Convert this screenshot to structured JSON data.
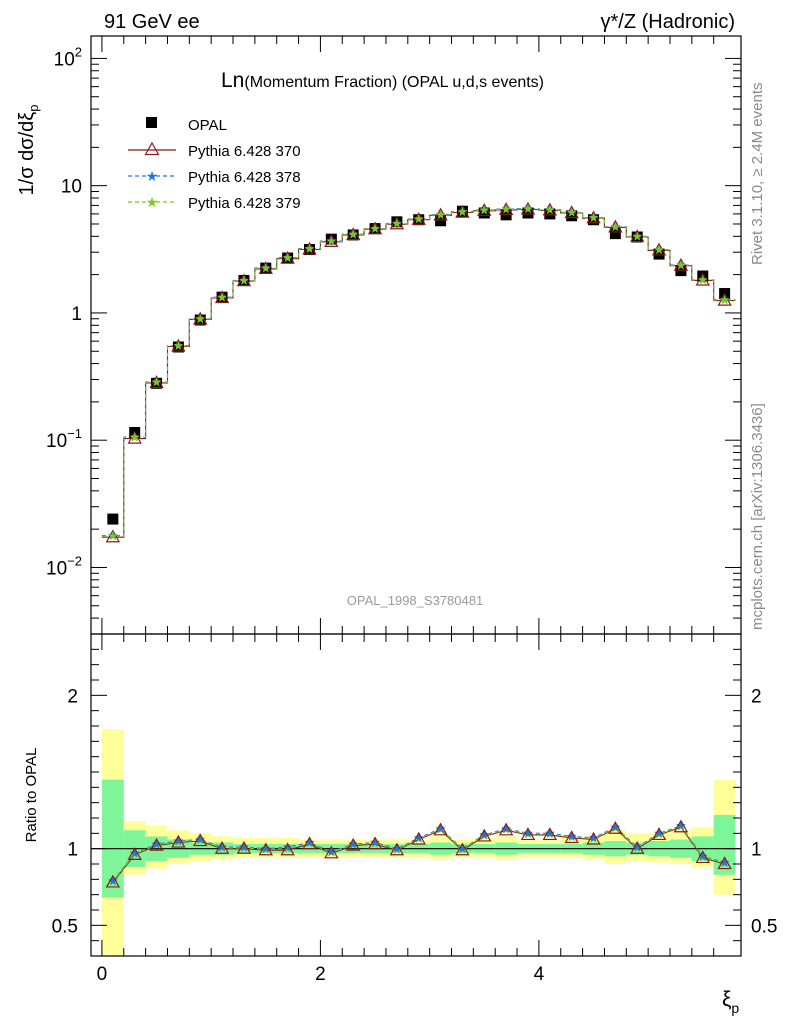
{
  "header": {
    "left": "91 GeV ee",
    "right": "γ*/Z (Hadronic)"
  },
  "title_main": "Ln",
  "title_rest": "(Momentum Fraction) (OPAL u,d,s events)",
  "analysis_id": "OPAL_1998_S3780481",
  "side_text": {
    "rivet": "Rivet 3.1.10, ≥ 2.4M events",
    "mcplots": "mcplots.cern.ch [arXiv:1306.3436]"
  },
  "y_axis_label": "1/σ dσ/dξp",
  "ratio_axis_label": "Ratio to OPAL",
  "x_axis_label": "ξp",
  "legend": [
    "OPAL",
    "Pythia 6.428 370",
    "Pythia 6.428 378",
    "Pythia 6.428 379"
  ],
  "colors": {
    "data": "#000000",
    "pythia370": "#8b1a1a",
    "pythia378": "#1f78e0",
    "pythia379": "#7bc61f",
    "band_inner": "#7ff59a",
    "band_outer": "#ffff99"
  },
  "chart_data": [
    {
      "type": "scatter",
      "scale": "log",
      "ylim": [
        0.003,
        150
      ],
      "xlim": [
        -0.1,
        5.85
      ],
      "y_ticks": [
        "10^-2",
        "10^-1",
        "1",
        "10",
        "10^2"
      ],
      "x": [
        0.1,
        0.3,
        0.5,
        0.7,
        0.9,
        1.1,
        1.3,
        1.5,
        1.7,
        1.9,
        2.1,
        2.3,
        2.5,
        2.7,
        2.9,
        3.1,
        3.3,
        3.5,
        3.7,
        3.9,
        4.1,
        4.3,
        4.5,
        4.7,
        4.9,
        5.1,
        5.3,
        5.5,
        5.7
      ],
      "series": [
        {
          "name": "OPAL",
          "values": [
            0.024,
            0.115,
            0.28,
            0.54,
            0.88,
            1.33,
            1.8,
            2.25,
            2.7,
            3.15,
            3.8,
            4.1,
            4.6,
            5.2,
            5.4,
            5.3,
            6.3,
            6.1,
            5.9,
            6.1,
            6.0,
            5.8,
            5.4,
            4.2,
            3.95,
            2.9,
            2.15,
            1.95,
            1.42
          ]
        },
        {
          "name": "Pythia 6.428 370",
          "values": [
            0.0173,
            0.103,
            0.282,
            0.545,
            0.89,
            1.31,
            1.78,
            2.22,
            2.67,
            3.15,
            3.62,
            4.1,
            4.55,
            4.98,
            5.4,
            5.85,
            6.15,
            6.35,
            6.45,
            6.5,
            6.4,
            6.1,
            5.55,
            4.7,
            3.95,
            3.1,
            2.35,
            1.8,
            1.25
          ]
        },
        {
          "name": "Pythia 6.428 378",
          "values": [
            0.0178,
            0.106,
            0.287,
            0.553,
            0.9,
            1.33,
            1.8,
            2.26,
            2.72,
            3.2,
            3.68,
            4.16,
            4.6,
            5.05,
            5.48,
            5.92,
            6.25,
            6.45,
            6.55,
            6.6,
            6.48,
            6.18,
            5.62,
            4.76,
            4.0,
            3.14,
            2.38,
            1.82,
            1.27
          ]
        },
        {
          "name": "Pythia 6.428 379",
          "values": [
            0.0176,
            0.105,
            0.285,
            0.55,
            0.895,
            1.32,
            1.79,
            2.24,
            2.7,
            3.18,
            3.65,
            4.13,
            4.58,
            5.02,
            5.44,
            5.88,
            6.2,
            6.4,
            6.5,
            6.55,
            6.44,
            6.14,
            5.58,
            4.73,
            3.97,
            3.12,
            2.36,
            1.81,
            1.26
          ]
        }
      ]
    },
    {
      "type": "line",
      "ylim": [
        0.3,
        2.4
      ],
      "y_ticks": [
        0.5,
        1,
        2
      ],
      "x_ticks": [
        0,
        2,
        4
      ],
      "x": [
        0.1,
        0.3,
        0.5,
        0.7,
        0.9,
        1.1,
        1.3,
        1.5,
        1.7,
        1.9,
        2.1,
        2.3,
        2.5,
        2.7,
        2.9,
        3.1,
        3.3,
        3.5,
        3.7,
        3.9,
        4.1,
        4.3,
        4.5,
        4.7,
        4.9,
        5.1,
        5.3,
        5.5,
        5.7
      ],
      "band_inner": [
        [
          0.68,
          1.45
        ],
        [
          0.88,
          1.12
        ],
        [
          0.92,
          1.08
        ],
        [
          0.94,
          1.06
        ],
        [
          0.96,
          1.04
        ],
        [
          0.96,
          1.04
        ],
        [
          0.97,
          1.03
        ],
        [
          0.97,
          1.03
        ],
        [
          0.97,
          1.03
        ],
        [
          0.97,
          1.03
        ],
        [
          0.97,
          1.03
        ],
        [
          0.97,
          1.03
        ],
        [
          0.97,
          1.03
        ],
        [
          0.97,
          1.03
        ],
        [
          0.97,
          1.03
        ],
        [
          0.96,
          1.04
        ],
        [
          0.97,
          1.03
        ],
        [
          0.97,
          1.03
        ],
        [
          0.96,
          1.04
        ],
        [
          0.97,
          1.03
        ],
        [
          0.97,
          1.03
        ],
        [
          0.97,
          1.03
        ],
        [
          0.96,
          1.04
        ],
        [
          0.95,
          1.05
        ],
        [
          0.96,
          1.04
        ],
        [
          0.95,
          1.05
        ],
        [
          0.94,
          1.06
        ],
        [
          0.92,
          1.08
        ],
        [
          0.83,
          1.22
        ]
      ],
      "band_outer": [
        [
          0.3,
          1.78
        ],
        [
          0.83,
          1.18
        ],
        [
          0.87,
          1.15
        ],
        [
          0.9,
          1.12
        ],
        [
          0.92,
          1.1
        ],
        [
          0.93,
          1.08
        ],
        [
          0.94,
          1.07
        ],
        [
          0.94,
          1.07
        ],
        [
          0.94,
          1.07
        ],
        [
          0.94,
          1.06
        ],
        [
          0.94,
          1.06
        ],
        [
          0.94,
          1.06
        ],
        [
          0.94,
          1.06
        ],
        [
          0.94,
          1.06
        ],
        [
          0.94,
          1.06
        ],
        [
          0.93,
          1.08
        ],
        [
          0.94,
          1.06
        ],
        [
          0.94,
          1.07
        ],
        [
          0.93,
          1.08
        ],
        [
          0.94,
          1.06
        ],
        [
          0.94,
          1.06
        ],
        [
          0.94,
          1.07
        ],
        [
          0.93,
          1.08
        ],
        [
          0.9,
          1.12
        ],
        [
          0.92,
          1.1
        ],
        [
          0.91,
          1.1
        ],
        [
          0.9,
          1.12
        ],
        [
          0.88,
          1.14
        ],
        [
          0.7,
          1.45
        ]
      ],
      "series": [
        {
          "name": "Pythia 6.428 370",
          "values": [
            0.78,
            0.96,
            1.02,
            1.04,
            1.05,
            1.0,
            1.0,
            0.99,
            0.99,
            1.03,
            0.97,
            1.02,
            1.03,
            0.99,
            1.06,
            1.12,
            0.99,
            1.08,
            1.12,
            1.09,
            1.09,
            1.07,
            1.06,
            1.13,
            1.0,
            1.09,
            1.14,
            0.94,
            0.9
          ]
        },
        {
          "name": "Pythia 6.428 378",
          "values": [
            0.79,
            0.97,
            1.03,
            1.05,
            1.06,
            1.01,
            1.01,
            1.0,
            1.01,
            1.04,
            0.98,
            1.03,
            1.04,
            1.0,
            1.07,
            1.13,
            1.0,
            1.09,
            1.13,
            1.1,
            1.1,
            1.08,
            1.07,
            1.14,
            1.01,
            1.1,
            1.15,
            0.95,
            0.91
          ]
        },
        {
          "name": "Pythia 6.428 379",
          "values": [
            0.785,
            0.965,
            1.025,
            1.045,
            1.055,
            1.005,
            1.005,
            0.995,
            1.0,
            1.035,
            0.975,
            1.025,
            1.035,
            0.995,
            1.065,
            1.125,
            0.995,
            1.085,
            1.125,
            1.095,
            1.095,
            1.075,
            1.065,
            1.135,
            1.005,
            1.095,
            1.145,
            0.945,
            0.905
          ]
        }
      ]
    }
  ]
}
